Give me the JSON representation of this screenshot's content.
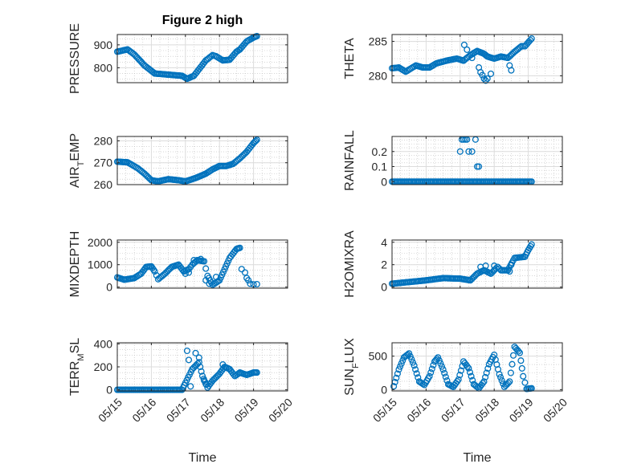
{
  "figure": {
    "title": "Figure 2 high",
    "xlabel": "Time",
    "colors": {
      "marker": "#0072BD",
      "axis": "#262626",
      "grid_major": "#dcdcdc",
      "grid_minor": "#bdbdbd"
    }
  },
  "chart_data": [
    {
      "type": "scatter",
      "title": "Figure 2 high",
      "xlabel": "",
      "ylabel": "PRESSURE",
      "ylabel_sub": "",
      "xlim": [
        15,
        20
      ],
      "ylim": [
        735,
        945
      ],
      "yticks": [
        800,
        900
      ],
      "xticks": [
        15,
        16,
        17,
        18,
        19,
        20
      ],
      "xticklabels": [],
      "grid": true,
      "minor_grid": true,
      "keyframes": [
        [
          15.0,
          870
        ],
        [
          15.3,
          880
        ],
        [
          15.5,
          858
        ],
        [
          15.8,
          810
        ],
        [
          16.1,
          775
        ],
        [
          16.5,
          770
        ],
        [
          16.9,
          765
        ],
        [
          17.05,
          752
        ],
        [
          17.25,
          765
        ],
        [
          17.6,
          832
        ],
        [
          17.8,
          855
        ],
        [
          17.9,
          850
        ],
        [
          18.1,
          832
        ],
        [
          18.3,
          835
        ],
        [
          18.5,
          870
        ],
        [
          18.6,
          880
        ],
        [
          18.8,
          915
        ],
        [
          19.0,
          932
        ],
        [
          19.1,
          938
        ]
      ],
      "points": []
    },
    {
      "type": "scatter",
      "title": "",
      "xlabel": "",
      "ylabel": "THETA",
      "ylabel_sub": "",
      "xlim": [
        15,
        20
      ],
      "ylim": [
        279,
        286
      ],
      "yticks": [
        280,
        285
      ],
      "xticks": [
        15,
        16,
        17,
        18,
        19,
        20
      ],
      "xticklabels": [],
      "grid": true,
      "minor_grid": true,
      "keyframes": [
        [
          15.0,
          281.1
        ],
        [
          15.2,
          281.2
        ],
        [
          15.4,
          280.6
        ],
        [
          15.7,
          281.5
        ],
        [
          15.9,
          281.2
        ],
        [
          16.1,
          281.2
        ],
        [
          16.3,
          281.8
        ],
        [
          16.6,
          282.2
        ],
        [
          16.9,
          282.5
        ],
        [
          17.1,
          282.2
        ],
        [
          17.3,
          283.0
        ],
        [
          17.5,
          283.6
        ],
        [
          17.7,
          283.2
        ],
        [
          17.8,
          282.8
        ],
        [
          18.0,
          282.5
        ],
        [
          18.2,
          282.8
        ],
        [
          18.4,
          282.6
        ],
        [
          18.6,
          283.5
        ],
        [
          18.8,
          284.3
        ],
        [
          18.9,
          284.3
        ],
        [
          19.1,
          285.4
        ]
      ],
      "points": [
        [
          17.12,
          284.5
        ],
        [
          17.2,
          283.8
        ],
        [
          17.35,
          282.6
        ],
        [
          17.55,
          281.2
        ],
        [
          17.6,
          280.5
        ],
        [
          17.65,
          280.1
        ],
        [
          17.7,
          279.6
        ],
        [
          17.75,
          279.3
        ],
        [
          17.8,
          279.6
        ],
        [
          17.9,
          280.3
        ],
        [
          18.45,
          281.5
        ],
        [
          18.5,
          280.8
        ]
      ]
    },
    {
      "type": "scatter",
      "title": "",
      "xlabel": "",
      "ylabel": "AIR",
      "ylabel_sub": "T",
      "ylabel_suffix": "EMP",
      "xlim": [
        15,
        20
      ],
      "ylim": [
        260,
        282
      ],
      "yticks": [
        260,
        270,
        280
      ],
      "xticks": [
        15,
        16,
        17,
        18,
        19,
        20
      ],
      "xticklabels": [],
      "grid": true,
      "minor_grid": true,
      "keyframes": [
        [
          15.0,
          270.5
        ],
        [
          15.3,
          270.2
        ],
        [
          15.6,
          267.5
        ],
        [
          15.8,
          265
        ],
        [
          16.0,
          262
        ],
        [
          16.2,
          261.5
        ],
        [
          16.5,
          262.5
        ],
        [
          16.8,
          262
        ],
        [
          17.0,
          261.5
        ],
        [
          17.3,
          263
        ],
        [
          17.6,
          265
        ],
        [
          17.8,
          267
        ],
        [
          18.0,
          268.5
        ],
        [
          18.2,
          268.5
        ],
        [
          18.4,
          269.5
        ],
        [
          18.6,
          272
        ],
        [
          18.8,
          275
        ],
        [
          19.0,
          279
        ],
        [
          19.1,
          280.5
        ]
      ],
      "points": []
    },
    {
      "type": "scatter",
      "title": "",
      "xlabel": "",
      "ylabel": "RAINFALL",
      "ylabel_sub": "",
      "xlim": [
        15,
        20
      ],
      "ylim": [
        -0.02,
        0.3
      ],
      "yticks": [
        0,
        0.1,
        0.2
      ],
      "xticks": [
        15,
        16,
        17,
        18,
        19,
        20
      ],
      "xticklabels": [],
      "grid": true,
      "minor_grid": true,
      "keyframes": [
        [
          15.0,
          0
        ],
        [
          19.1,
          0
        ]
      ],
      "points": [
        [
          17.0,
          0.2
        ],
        [
          17.05,
          0.28
        ],
        [
          17.1,
          0.28
        ],
        [
          17.15,
          0.28
        ],
        [
          17.2,
          0.28
        ],
        [
          17.25,
          0.2
        ],
        [
          17.35,
          0.2
        ],
        [
          17.45,
          0.28
        ],
        [
          17.5,
          0.1
        ],
        [
          17.55,
          0.1
        ]
      ]
    },
    {
      "type": "scatter",
      "title": "",
      "xlabel": "",
      "ylabel": "MIXDEPTH",
      "ylabel_sub": "",
      "xlim": [
        15,
        20
      ],
      "ylim": [
        -50,
        2100
      ],
      "yticks": [
        0,
        1000,
        2000
      ],
      "xticks": [
        15,
        16,
        17,
        18,
        19,
        20
      ],
      "xticklabels": [],
      "grid": true,
      "minor_grid": true,
      "keyframes": [
        [
          15.0,
          430
        ],
        [
          15.2,
          330
        ],
        [
          15.5,
          400
        ],
        [
          15.7,
          600
        ],
        [
          15.85,
          900
        ],
        [
          16.0,
          920
        ],
        [
          16.1,
          700
        ],
        [
          16.2,
          350
        ],
        [
          16.4,
          600
        ],
        [
          16.6,
          900
        ],
        [
          16.8,
          1000
        ],
        [
          16.95,
          700
        ],
        [
          17.1,
          800
        ],
        [
          17.2,
          1000
        ],
        [
          17.35,
          1200
        ],
        [
          17.55,
          1150
        ],
        [
          17.65,
          500
        ],
        [
          17.8,
          100
        ],
        [
          18.0,
          300
        ],
        [
          18.15,
          800
        ],
        [
          18.3,
          1300
        ],
        [
          18.5,
          1700
        ],
        [
          18.6,
          1750
        ]
      ],
      "points": [
        [
          17.0,
          600
        ],
        [
          17.1,
          650
        ],
        [
          17.25,
          1200
        ],
        [
          17.45,
          1250
        ],
        [
          17.6,
          300
        ],
        [
          17.7,
          150
        ],
        [
          17.9,
          450
        ],
        [
          18.65,
          800
        ],
        [
          18.75,
          650
        ],
        [
          18.8,
          400
        ],
        [
          18.85,
          300
        ],
        [
          18.9,
          150
        ],
        [
          19.0,
          120
        ],
        [
          19.1,
          130
        ]
      ]
    },
    {
      "type": "scatter",
      "title": "",
      "xlabel": "",
      "ylabel": "H2OMIXRA",
      "ylabel_sub": "",
      "xlim": [
        15,
        20
      ],
      "ylim": [
        -0.1,
        4.2
      ],
      "yticks": [
        0,
        2,
        4
      ],
      "xticks": [
        15,
        16,
        17,
        18,
        19,
        20
      ],
      "xticklabels": [],
      "grid": true,
      "minor_grid": true,
      "keyframes": [
        [
          15.0,
          0.3
        ],
        [
          15.5,
          0.45
        ],
        [
          16.0,
          0.6
        ],
        [
          16.5,
          0.8
        ],
        [
          17.0,
          0.75
        ],
        [
          17.3,
          0.6
        ],
        [
          17.5,
          1.2
        ],
        [
          17.7,
          1.5
        ],
        [
          17.9,
          1.2
        ],
        [
          18.1,
          1.8
        ],
        [
          18.2,
          1.5
        ],
        [
          18.4,
          1.5
        ],
        [
          18.6,
          2.6
        ],
        [
          18.9,
          2.7
        ],
        [
          19.0,
          3.3
        ],
        [
          19.1,
          3.8
        ]
      ],
      "points": [
        [
          17.6,
          1.8
        ],
        [
          17.75,
          1.9
        ],
        [
          18.0,
          1.9
        ],
        [
          18.5,
          2.0
        ],
        [
          18.45,
          1.4
        ]
      ]
    },
    {
      "type": "scatter",
      "title": "",
      "xlabel": "",
      "ylabel": "TERR",
      "ylabel_sub": "M",
      "ylabel_suffix": "SL",
      "xlim": [
        15,
        20
      ],
      "ylim": [
        -10,
        410
      ],
      "yticks": [
        0,
        200,
        400
      ],
      "xticks": [
        15,
        16,
        17,
        18,
        19,
        20
      ],
      "xticklabels": [
        "05/15",
        "05/16",
        "05/17",
        "05/18",
        "05/19",
        "05/20"
      ],
      "grid": true,
      "minor_grid": true,
      "keyframes": [
        [
          15.0,
          0
        ],
        [
          16.9,
          0
        ],
        [
          17.0,
          60
        ],
        [
          17.2,
          180
        ],
        [
          17.4,
          240
        ],
        [
          17.5,
          120
        ],
        [
          17.65,
          20
        ],
        [
          17.8,
          80
        ],
        [
          18.0,
          140
        ],
        [
          18.15,
          200
        ],
        [
          18.3,
          180
        ],
        [
          18.45,
          120
        ],
        [
          18.6,
          150
        ],
        [
          18.8,
          130
        ],
        [
          19.0,
          150
        ],
        [
          19.1,
          150
        ]
      ],
      "points": [
        [
          17.05,
          340
        ],
        [
          17.1,
          260
        ],
        [
          17.15,
          30
        ],
        [
          17.3,
          320
        ],
        [
          17.4,
          280
        ],
        [
          17.55,
          80
        ],
        [
          17.6,
          50
        ],
        [
          18.1,
          220
        ]
      ]
    },
    {
      "type": "scatter",
      "title": "",
      "xlabel": "",
      "ylabel": "SUN",
      "ylabel_sub": "F",
      "ylabel_suffix": "LUX",
      "xlim": [
        15,
        20
      ],
      "ylim": [
        -20,
        700
      ],
      "yticks": [
        0,
        500
      ],
      "xticks": [
        15,
        16,
        17,
        18,
        19,
        20
      ],
      "xticklabels": [
        "05/15",
        "05/16",
        "05/17",
        "05/18",
        "05/19",
        "05/20"
      ],
      "grid": true,
      "minor_grid": true,
      "keyframes": [
        [
          15.05,
          50
        ],
        [
          15.2,
          300
        ],
        [
          15.35,
          480
        ],
        [
          15.5,
          540
        ],
        [
          15.65,
          360
        ],
        [
          15.8,
          120
        ],
        [
          15.95,
          70
        ],
        [
          16.1,
          200
        ],
        [
          16.25,
          420
        ],
        [
          16.35,
          480
        ],
        [
          16.5,
          300
        ],
        [
          16.65,
          80
        ],
        [
          16.8,
          40
        ],
        [
          16.95,
          150
        ],
        [
          17.1,
          420
        ],
        [
          17.25,
          320
        ],
        [
          17.4,
          80
        ],
        [
          17.55,
          20
        ],
        [
          17.7,
          120
        ],
        [
          17.85,
          380
        ],
        [
          18.0,
          520
        ],
        [
          18.15,
          230
        ],
        [
          18.3,
          40
        ],
        [
          18.45,
          120
        ],
        [
          18.6,
          640
        ],
        [
          18.75,
          550
        ],
        [
          18.85,
          200
        ],
        [
          18.95,
          10
        ],
        [
          19.1,
          20
        ]
      ],
      "points": []
    }
  ]
}
